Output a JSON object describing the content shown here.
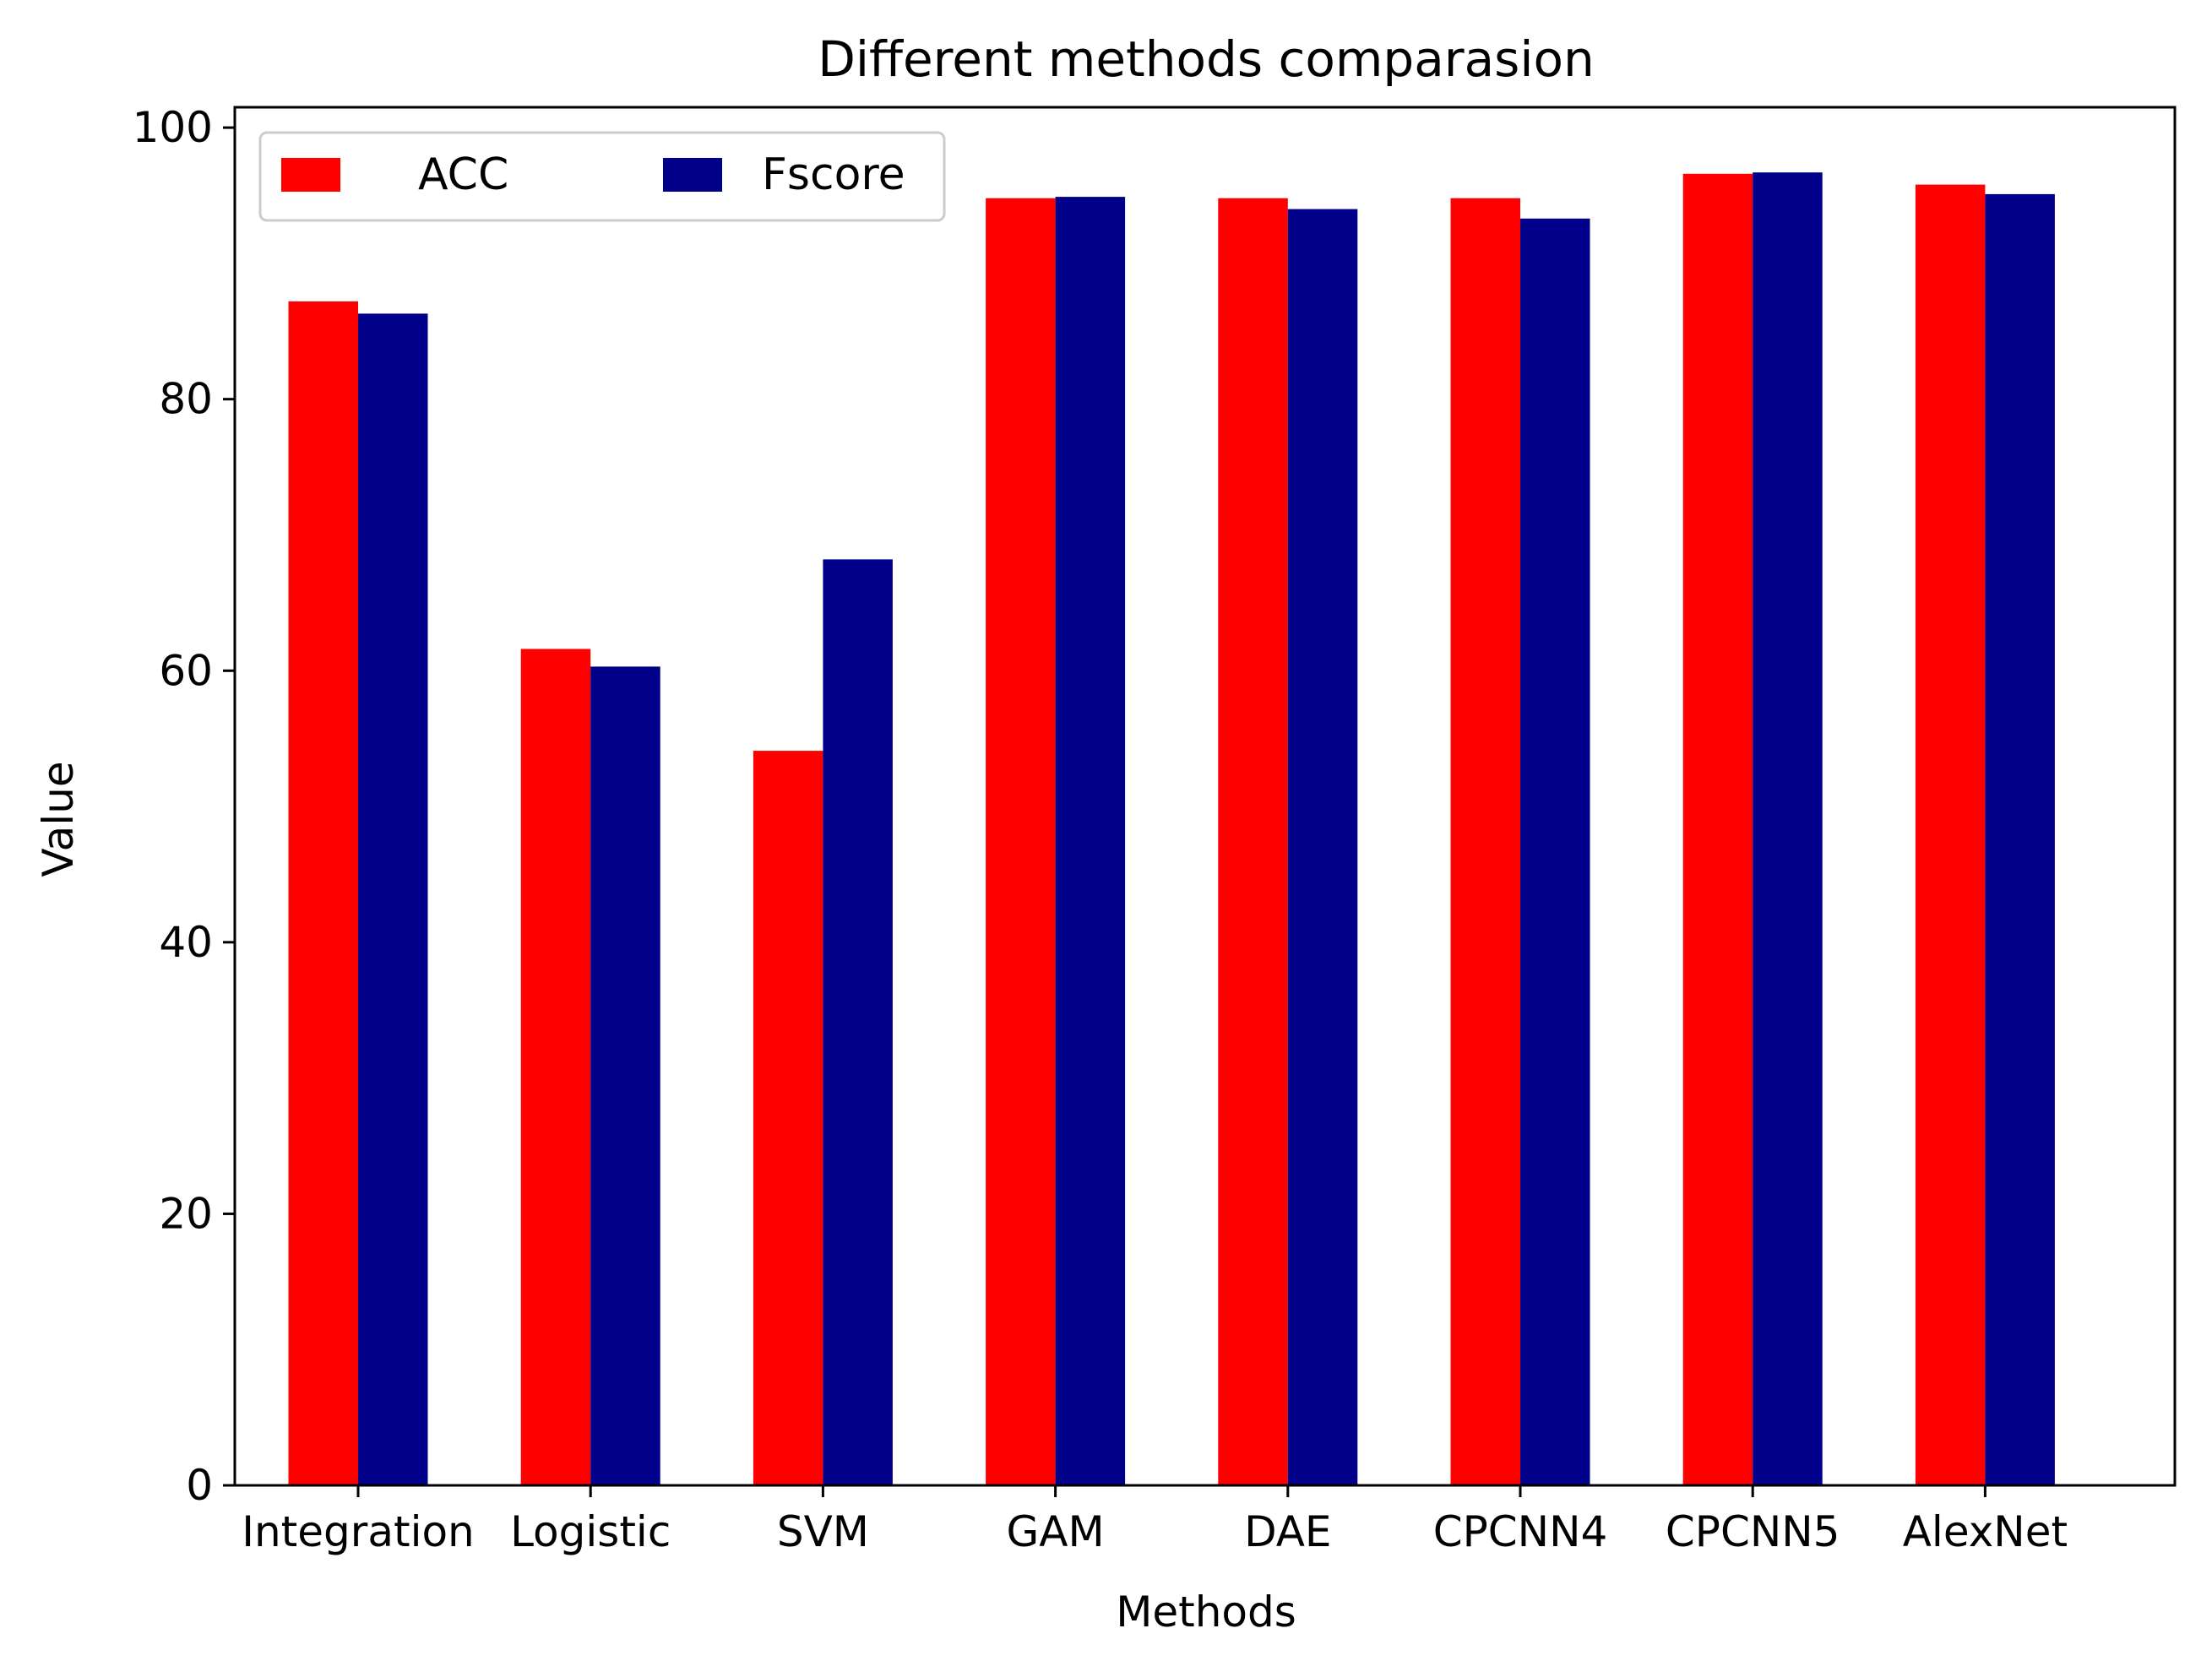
{
  "chart_data": {
    "type": "bar",
    "title": "Different methods comparasion",
    "xlabel": "Methods",
    "ylabel": "Value",
    "categories": [
      "Integration",
      "Logistic",
      "SVM",
      "GAM",
      "DAE",
      "CPCNN4",
      "CPCNN5",
      "AlexNet"
    ],
    "series": [
      {
        "name": "ACC",
        "color": "#ff0000",
        "values": [
          87.2,
          61.6,
          54.1,
          94.8,
          94.8,
          94.8,
          96.6,
          95.8
        ]
      },
      {
        "name": "Fscore",
        "color": "#00008b",
        "values": [
          86.3,
          60.3,
          68.2,
          94.9,
          94.0,
          93.3,
          96.7,
          95.1
        ]
      }
    ],
    "ylim": [
      0,
      101.5
    ],
    "yticks": [
      0,
      20,
      40,
      60,
      80,
      100
    ],
    "grid": false,
    "legend_position": "top-left"
  }
}
